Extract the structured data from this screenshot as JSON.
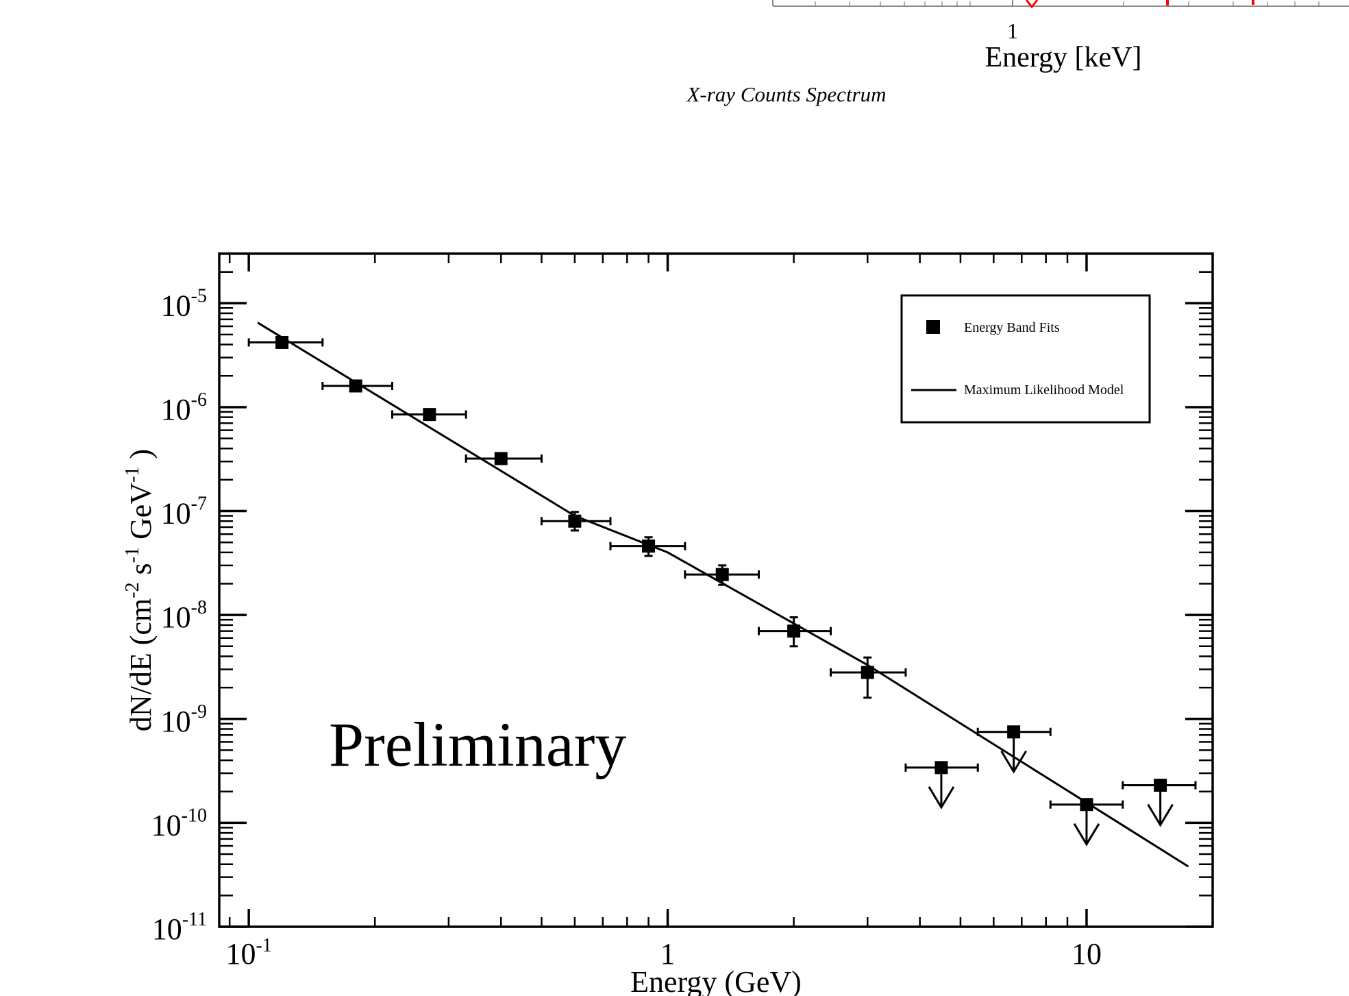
{
  "top_fragment": {
    "tick_label": "1",
    "axis_label": "Energy [keV]",
    "caption": "X-ray Counts Spectrum",
    "marker_color": "#ff0000"
  },
  "chart_data": {
    "type": "scatter",
    "title": "",
    "xlabel": "Energy (GeV)",
    "ylabel": "dN/dE (cm-2 s-1 GeV-1 )",
    "ylabel_parts": {
      "base1": "dN/dE (cm",
      "sup1": "-2",
      "mid1": " s",
      "sup2": "-1",
      "mid2": " GeV",
      "sup3": "-1",
      "end": " )"
    },
    "x_scale": "log",
    "y_scale": "log",
    "xlim": [
      0.085,
      20.0
    ],
    "ylim": [
      1e-11,
      3e-05
    ],
    "x_ticks": [
      {
        "value": 0.1,
        "base": "10",
        "exp": "-1"
      },
      {
        "value": 1,
        "base": "1",
        "exp": ""
      },
      {
        "value": 10,
        "base": "10",
        "exp": ""
      }
    ],
    "y_ticks": [
      {
        "value": 1e-05,
        "base": "10",
        "exp": "-5"
      },
      {
        "value": 1e-06,
        "base": "10",
        "exp": "-6"
      },
      {
        "value": 1e-07,
        "base": "10",
        "exp": "-7"
      },
      {
        "value": 1e-08,
        "base": "10",
        "exp": "-8"
      },
      {
        "value": 1e-09,
        "base": "10",
        "exp": "-9"
      },
      {
        "value": 1e-10,
        "base": "10",
        "exp": "-10"
      },
      {
        "value": 1e-11,
        "base": "10",
        "exp": "-11"
      }
    ],
    "annotation": "Preliminary",
    "legend": {
      "placement": "top-right",
      "entries": [
        {
          "label": "Energy Band Fits",
          "marker": "square"
        },
        {
          "label": "Maximum Likelihood Model",
          "marker": "line"
        }
      ]
    },
    "series": [
      {
        "name": "Energy Band Fits",
        "marker": "square",
        "points": [
          {
            "x": 0.12,
            "xlo": 0.1,
            "xhi": 0.15,
            "y": 4.2e-06,
            "ylo": 3.8e-06,
            "yhi": 4.6e-06,
            "upper_limit": false
          },
          {
            "x": 0.18,
            "xlo": 0.15,
            "xhi": 0.22,
            "y": 1.6e-06,
            "ylo": 1.45e-06,
            "yhi": 1.75e-06,
            "upper_limit": false
          },
          {
            "x": 0.27,
            "xlo": 0.22,
            "xhi": 0.33,
            "y": 8.5e-07,
            "ylo": 7.8e-07,
            "yhi": 9.2e-07,
            "upper_limit": false
          },
          {
            "x": 0.4,
            "xlo": 0.33,
            "xhi": 0.5,
            "y": 3.2e-07,
            "ylo": 2.9e-07,
            "yhi": 3.5e-07,
            "upper_limit": false
          },
          {
            "x": 0.6,
            "xlo": 0.5,
            "xhi": 0.73,
            "y": 8e-08,
            "ylo": 6.5e-08,
            "yhi": 9.8e-08,
            "upper_limit": false
          },
          {
            "x": 0.9,
            "xlo": 0.73,
            "xhi": 1.1,
            "y": 4.6e-08,
            "ylo": 3.7e-08,
            "yhi": 5.6e-08,
            "upper_limit": false
          },
          {
            "x": 1.35,
            "xlo": 1.1,
            "xhi": 1.65,
            "y": 2.45e-08,
            "ylo": 1.95e-08,
            "yhi": 3e-08,
            "upper_limit": false
          },
          {
            "x": 2.0,
            "xlo": 1.65,
            "xhi": 2.45,
            "y": 7e-09,
            "ylo": 5e-09,
            "yhi": 9.5e-09,
            "upper_limit": false
          },
          {
            "x": 3.0,
            "xlo": 2.45,
            "xhi": 3.7,
            "y": 2.8e-09,
            "ylo": 1.6e-09,
            "yhi": 3.9e-09,
            "upper_limit": false
          },
          {
            "x": 4.5,
            "xlo": 3.7,
            "xhi": 5.5,
            "y": 3.4e-10,
            "upper_limit": true
          },
          {
            "x": 6.7,
            "xlo": 5.5,
            "xhi": 8.2,
            "y": 7.5e-10,
            "upper_limit": true
          },
          {
            "x": 10.0,
            "xlo": 8.2,
            "xhi": 12.2,
            "y": 1.5e-10,
            "upper_limit": true
          },
          {
            "x": 15.0,
            "xlo": 12.2,
            "xhi": 18.2,
            "y": 2.3e-10,
            "upper_limit": true
          }
        ]
      },
      {
        "name": "Maximum Likelihood Model",
        "type": "line",
        "x": [
          0.105,
          0.6,
          1.0,
          3.0,
          17.5
        ],
        "y": [
          6.5e-06,
          9e-08,
          4e-08,
          3.3e-09,
          3.8e-11
        ]
      }
    ]
  }
}
